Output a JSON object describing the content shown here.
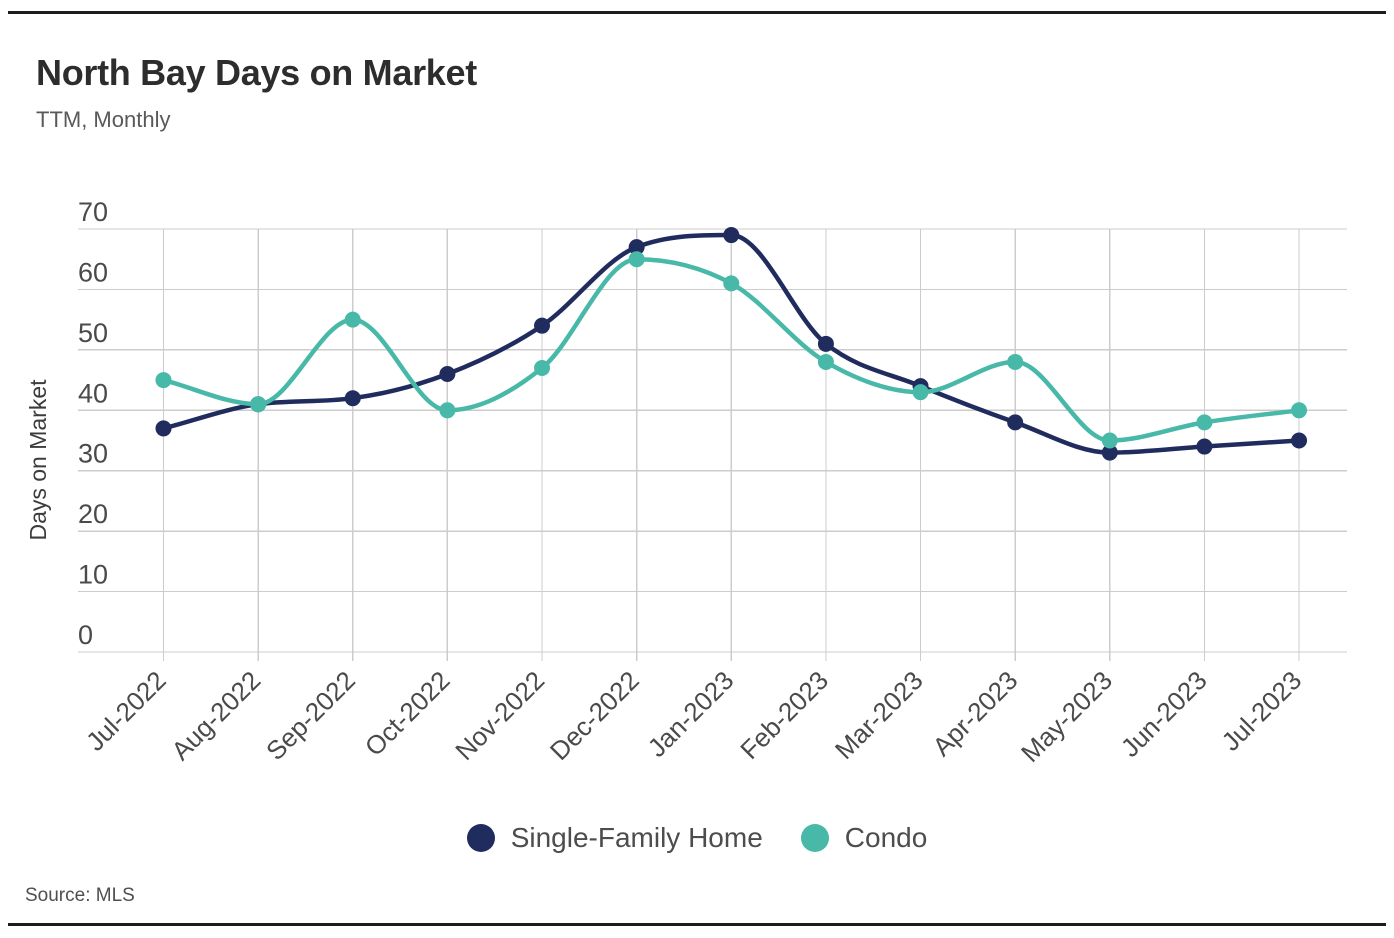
{
  "header": {
    "title": "North Bay Days on Market",
    "subtitle": "TTM, Monthly"
  },
  "y_axis": {
    "title": "Days on Market",
    "ticks": [
      0,
      10,
      20,
      30,
      40,
      50,
      60,
      70
    ]
  },
  "x_axis": {
    "labels": [
      "Jul-2022",
      "Aug-2022",
      "Sep-2022",
      "Oct-2022",
      "Nov-2022",
      "Dec-2022",
      "Jan-2023",
      "Feb-2023",
      "Mar-2023",
      "Apr-2023",
      "May-2023",
      "Jun-2023",
      "Jul-2023"
    ]
  },
  "legend": {
    "items": [
      {
        "label": "Single-Family Home",
        "color": "#212c5e"
      },
      {
        "label": "Condo",
        "color": "#48b9a8"
      }
    ]
  },
  "source": {
    "text": "Source: MLS"
  },
  "colors": {
    "navy": "#212c5e",
    "teal": "#48b9a8",
    "gridline": "#cccccc",
    "tick_text": "#4a4a4a",
    "title_text": "#2d2d2d",
    "subtitle_text": "#595959",
    "border_rule": "#1c1c1c"
  },
  "chart_data": {
    "type": "line",
    "title": "North Bay Days on Market",
    "subtitle": "TTM, Monthly",
    "xlabel": "",
    "ylabel": "Days on Market",
    "x": [
      "Jul-2022",
      "Aug-2022",
      "Sep-2022",
      "Oct-2022",
      "Nov-2022",
      "Dec-2022",
      "Jan-2023",
      "Feb-2023",
      "Mar-2023",
      "Apr-2023",
      "May-2023",
      "Jun-2023",
      "Jul-2023"
    ],
    "series": [
      {
        "name": "Single-Family Home",
        "color": "#212c5e",
        "values": [
          37,
          41,
          42,
          46,
          54,
          67,
          69,
          51,
          44,
          38,
          33,
          34,
          35
        ]
      },
      {
        "name": "Condo",
        "color": "#48b9a8",
        "values": [
          45,
          41,
          55,
          40,
          47,
          65,
          61,
          48,
          43,
          48,
          35,
          38,
          40
        ]
      }
    ],
    "ylim": [
      0,
      70
    ],
    "yticks": [
      0,
      10,
      20,
      30,
      40,
      50,
      60,
      70
    ],
    "grid": true,
    "curve": "monotone",
    "point_markers": true,
    "legend_position": "bottom",
    "source": "Source: MLS"
  }
}
